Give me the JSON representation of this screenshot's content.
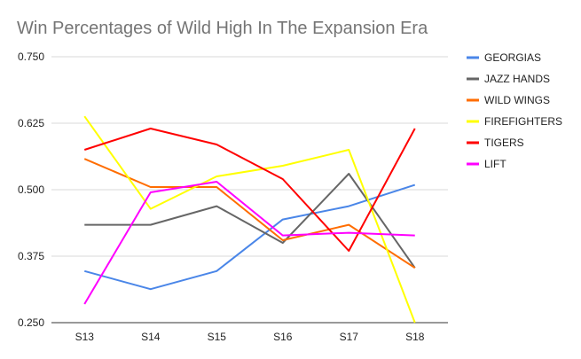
{
  "chart_data": {
    "type": "line",
    "title": "Win Percentages of Wild High In The Expansion Era",
    "xlabel": "",
    "ylabel": "",
    "categories": [
      "S13",
      "S14",
      "S15",
      "S16",
      "S17",
      "S18"
    ],
    "ylim": [
      0.25,
      0.75
    ],
    "yticks": [
      "0.750",
      "0.625",
      "0.500",
      "0.375",
      "0.250"
    ],
    "ytick_values": [
      0.75,
      0.625,
      0.5,
      0.375,
      0.25
    ],
    "grid": true,
    "legend_position": "right",
    "series": [
      {
        "name": "GEORGIAS",
        "color": "#4a86e8",
        "values": [
          0.347,
          0.313,
          0.347,
          0.444,
          0.469,
          0.509
        ]
      },
      {
        "name": "JAZZ HANDS",
        "color": "#666666",
        "values": [
          0.434,
          0.434,
          0.469,
          0.4,
          0.53,
          0.353
        ]
      },
      {
        "name": "WILD WINGS",
        "color": "#ff6d01",
        "values": [
          0.558,
          0.505,
          0.505,
          0.405,
          0.434,
          0.353
        ]
      },
      {
        "name": "FIREFIGHTERS",
        "color": "#ffff00",
        "values": [
          0.638,
          0.464,
          0.525,
          0.545,
          0.575,
          0.25
        ]
      },
      {
        "name": "TIGERS",
        "color": "#ff0000",
        "values": [
          0.575,
          0.615,
          0.585,
          0.52,
          0.385,
          0.615
        ]
      },
      {
        "name": "LIFT",
        "color": "#ff00ff",
        "values": [
          0.285,
          0.495,
          0.515,
          0.414,
          0.419,
          0.414
        ]
      }
    ]
  }
}
